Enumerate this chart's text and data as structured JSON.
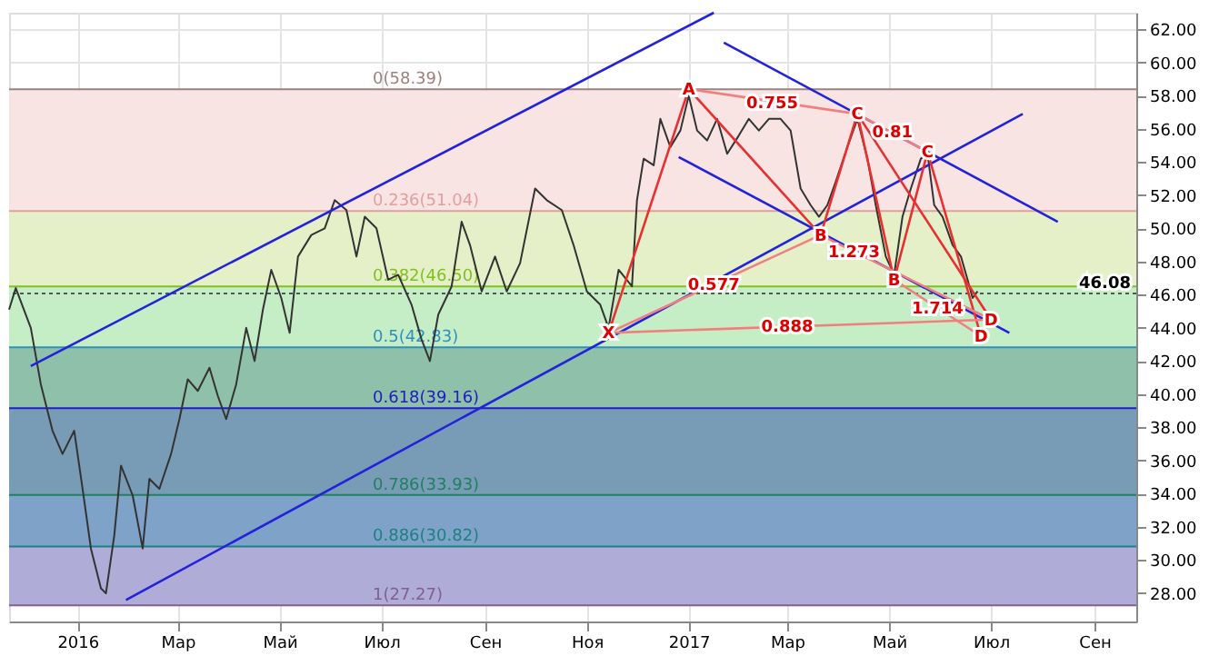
{
  "chart_data": {
    "type": "line",
    "x": [
      "2015-11-21",
      "2015-11-25",
      "2015-12-04",
      "2015-12-10",
      "2015-12-17",
      "2015-12-23",
      "2015-12-30",
      "2016-01-04",
      "2016-01-09",
      "2016-01-15",
      "2016-01-18",
      "2016-01-23",
      "2016-01-27",
      "2016-02-03",
      "2016-02-09",
      "2016-02-13",
      "2016-02-19",
      "2016-02-26",
      "2016-03-02",
      "2016-03-07",
      "2016-03-13",
      "2016-03-20",
      "2016-03-25",
      "2016-03-30",
      "2016-04-05",
      "2016-04-11",
      "2016-04-16",
      "2016-04-21",
      "2016-04-26",
      "2016-05-02",
      "2016-05-07",
      "2016-05-12",
      "2016-05-20",
      "2016-05-28",
      "2016-06-03",
      "2016-06-10",
      "2016-06-16",
      "2016-06-21",
      "2016-06-28",
      "2016-07-05",
      "2016-07-11",
      "2016-07-19",
      "2016-07-25",
      "2016-07-30",
      "2016-08-04",
      "2016-08-12",
      "2016-08-18",
      "2016-08-23",
      "2016-08-30",
      "2016-09-07",
      "2016-09-14",
      "2016-09-22",
      "2016-10-01",
      "2016-10-08",
      "2016-10-17",
      "2016-10-24",
      "2016-11-01",
      "2016-11-09",
      "2016-11-14",
      "2016-11-20",
      "2016-11-28",
      "2016-12-01",
      "2016-12-05",
      "2016-12-11",
      "2016-12-15",
      "2016-12-21",
      "2016-12-27",
      "2017-01-01",
      "2017-01-06",
      "2017-01-12",
      "2017-01-18",
      "2017-01-24",
      "2017-01-31",
      "2017-02-06",
      "2017-02-12",
      "2017-02-18",
      "2017-02-25",
      "2017-03-03",
      "2017-03-09",
      "2017-03-15",
      "2017-03-20",
      "2017-03-25",
      "2017-03-30",
      "2017-04-06",
      "2017-04-12",
      "2017-04-18",
      "2017-04-23",
      "2017-04-29",
      "2017-05-04",
      "2017-05-09",
      "2017-05-14",
      "2017-05-20",
      "2017-05-24",
      "2017-05-28",
      "2017-06-02",
      "2017-06-08",
      "2017-06-13",
      "2017-06-17",
      "2017-06-20",
      "2017-06-23"
    ],
    "series": [
      {
        "color": "#333333",
        "values": [
          45.1,
          46.4,
          44.0,
          40.6,
          37.8,
          36.4,
          37.8,
          34.3,
          30.7,
          28.3,
          28.0,
          31.5,
          35.7,
          33.9,
          30.7,
          34.9,
          34.3,
          36.4,
          38.5,
          40.9,
          40.2,
          41.6,
          39.9,
          38.5,
          40.6,
          44.0,
          42.0,
          45.1,
          47.5,
          45.8,
          43.7,
          48.3,
          49.6,
          50.0,
          51.7,
          51.1,
          48.3,
          50.7,
          50.0,
          46.9,
          47.2,
          45.4,
          43.3,
          42.0,
          44.8,
          46.5,
          50.4,
          49.0,
          46.2,
          48.3,
          46.2,
          47.9,
          52.4,
          51.7,
          51.1,
          49.0,
          46.2,
          45.4,
          44.0,
          47.5,
          46.5,
          51.7,
          54.2,
          53.8,
          56.6,
          54.9,
          55.9,
          58.0,
          55.9,
          55.3,
          56.6,
          54.5,
          55.6,
          56.6,
          55.9,
          56.6,
          56.6,
          55.9,
          52.4,
          51.4,
          50.7,
          51.4,
          52.8,
          54.9,
          56.6,
          54.2,
          51.4,
          48.3,
          47.2,
          50.7,
          52.4,
          54.2,
          54.5,
          51.4,
          50.7,
          49.0,
          48.3,
          46.9,
          45.8,
          46.2
        ]
      },
      {
        "color": "#2222dd",
        "x": [
          "2015-12-04",
          "2017-01-16"
        ],
        "values": [
          41.7,
          63.0
        ]
      },
      {
        "color": "#2222dd",
        "x": [
          "2016-01-30",
          "2017-07-20"
        ],
        "values": [
          27.6,
          56.9
        ]
      },
      {
        "color": "#2222dd",
        "x": [
          "2017-01-22",
          "2017-08-10"
        ],
        "values": [
          61.2,
          50.4
        ]
      },
      {
        "color": "#2222dd",
        "x": [
          "2016-12-26",
          "2017-07-12"
        ],
        "values": [
          54.3,
          43.7
        ]
      },
      {
        "color": "#e83030",
        "x": [
          "2016-11-14",
          "2017-01-01",
          "2017-03-21",
          "2017-04-12",
          "2017-07-01"
        ],
        "values": [
          43.7,
          58.4,
          49.6,
          56.9,
          44.5
        ]
      },
      {
        "color": "#e83030",
        "x": [
          "2017-04-12",
          "2017-05-04",
          "2017-05-24",
          "2017-06-25"
        ],
        "values": [
          56.9,
          46.9,
          54.6,
          43.5
        ]
      },
      {
        "color": "#f08080",
        "x": [
          "2016-11-14",
          "2017-03-21"
        ],
        "values": [
          43.7,
          49.6
        ]
      },
      {
        "color": "#f08080",
        "x": [
          "2017-01-01",
          "2017-04-12",
          "2017-05-24"
        ],
        "values": [
          58.4,
          56.9,
          54.6
        ]
      },
      {
        "color": "#f08080",
        "x": [
          "2016-11-14",
          "2017-07-01"
        ],
        "values": [
          43.7,
          44.5
        ]
      },
      {
        "color": "#f08080",
        "x": [
          "2017-03-21",
          "2017-07-01"
        ],
        "values": [
          49.6,
          44.5
        ]
      },
      {
        "color": "#f08080",
        "x": [
          "2017-05-04",
          "2017-06-25"
        ],
        "values": [
          46.9,
          43.5
        ]
      }
    ],
    "xlim": [
      "2015-11-21",
      "2017-09-26"
    ],
    "xticks": [
      {
        "value": "2016-01-01",
        "label": "2016"
      },
      {
        "value": "2016-03-01",
        "label": "Мар"
      },
      {
        "value": "2016-05-01",
        "label": "Май"
      },
      {
        "value": "2016-07-01",
        "label": "Июл"
      },
      {
        "value": "2016-09-01",
        "label": "Сен"
      },
      {
        "value": "2016-11-01",
        "label": "Ноя"
      },
      {
        "value": "2017-01-01",
        "label": "2017"
      },
      {
        "value": "2017-03-01",
        "label": "Мар"
      },
      {
        "value": "2017-05-01",
        "label": "Май"
      },
      {
        "value": "2017-07-01",
        "label": "Июл"
      },
      {
        "value": "2017-09-01",
        "label": "Сен"
      }
    ],
    "ylim": [
      26.3,
      63.0
    ],
    "yticks": [
      {
        "value": 28,
        "label": "28.00"
      },
      {
        "value": 30,
        "label": "30.00"
      },
      {
        "value": 32,
        "label": "32.00"
      },
      {
        "value": 34,
        "label": "34.00"
      },
      {
        "value": 36,
        "label": "36.00"
      },
      {
        "value": 38,
        "label": "38.00"
      },
      {
        "value": 40,
        "label": "40.00"
      },
      {
        "value": 42,
        "label": "42.00"
      },
      {
        "value": 44,
        "label": "44.00"
      },
      {
        "value": 46,
        "label": "46.00"
      },
      {
        "value": 48,
        "label": "48.00"
      },
      {
        "value": 50,
        "label": "50.00"
      },
      {
        "value": 52,
        "label": "52.00"
      },
      {
        "value": 54,
        "label": "54.00"
      },
      {
        "value": 56,
        "label": "56.00"
      },
      {
        "value": 58,
        "label": "58.00"
      },
      {
        "value": 60,
        "label": "60.00"
      },
      {
        "value": 62,
        "label": "62.00"
      }
    ],
    "bands": [
      {
        "axis": "y",
        "from": 51.04,
        "to": 58.39,
        "color": "#f9e4e4"
      },
      {
        "axis": "y",
        "from": 46.5,
        "to": 51.04,
        "color": "#e6f0c8"
      },
      {
        "axis": "y",
        "from": 42.83,
        "to": 46.5,
        "color": "#c6eec6"
      },
      {
        "axis": "y",
        "from": 39.16,
        "to": 42.83,
        "color": "#8fc0aa"
      },
      {
        "axis": "y",
        "from": 33.93,
        "to": 39.16,
        "color": "#789cb6"
      },
      {
        "axis": "y",
        "from": 30.82,
        "to": 33.93,
        "color": "#7ea2c8"
      },
      {
        "axis": "y",
        "from": 27.27,
        "to": 30.82,
        "color": "#b0acd8"
      }
    ],
    "ref_lines": [
      {
        "axis": "y",
        "value": 58.39,
        "label": "0(58.39)",
        "color": "#a08080"
      },
      {
        "axis": "y",
        "value": 51.04,
        "label": "0.236(51.04)",
        "color": "#e0a0a0"
      },
      {
        "axis": "y",
        "value": 46.5,
        "label": "0.382(46.50)",
        "color": "#80c020"
      },
      {
        "axis": "y",
        "value": 42.83,
        "label": "0.5(42.83)",
        "color": "#2f8fc0"
      },
      {
        "axis": "y",
        "value": 39.16,
        "label": "0.618(39.16)",
        "color": "#2020c0"
      },
      {
        "axis": "y",
        "value": 33.93,
        "label": "0.786(33.93)",
        "color": "#208060"
      },
      {
        "axis": "y",
        "value": 30.82,
        "label": "0.886(30.82)",
        "color": "#208080"
      },
      {
        "axis": "y",
        "value": 27.27,
        "label": "1(27.27)",
        "color": "#806090"
      },
      {
        "axis": "y",
        "value": 46.08,
        "label": "46.08",
        "color": "#555555",
        "line_style": "dotted"
      }
    ],
    "annotations": [
      {
        "text": "X",
        "x": "2016-11-14",
        "y": 43.7
      },
      {
        "text": "A",
        "x": "2017-01-01",
        "y": 58.4
      },
      {
        "text": "B",
        "x": "2017-03-21",
        "y": 49.6
      },
      {
        "text": "C",
        "x": "2017-04-12",
        "y": 56.9
      },
      {
        "text": "D",
        "x": "2017-07-01",
        "y": 44.5
      },
      {
        "text": "B",
        "x": "2017-05-04",
        "y": 46.9
      },
      {
        "text": "C",
        "x": "2017-05-24",
        "y": 54.6
      },
      {
        "text": "D",
        "x": "2017-06-25",
        "y": 43.5
      },
      {
        "text": "0.755",
        "x": "2017-02-20",
        "y": 57.6
      },
      {
        "text": "0.577",
        "x": "2017-01-16",
        "y": 46.6
      },
      {
        "text": "0.888",
        "x": "2017-03-01",
        "y": 44.1
      },
      {
        "text": "0.81",
        "x": "2017-05-03",
        "y": 55.8
      },
      {
        "text": "1.714",
        "x": "2017-05-30",
        "y": 45.2
      },
      {
        "text": "1.273",
        "x": "2017-04-10",
        "y": 48.6
      }
    ],
    "grid": true
  }
}
